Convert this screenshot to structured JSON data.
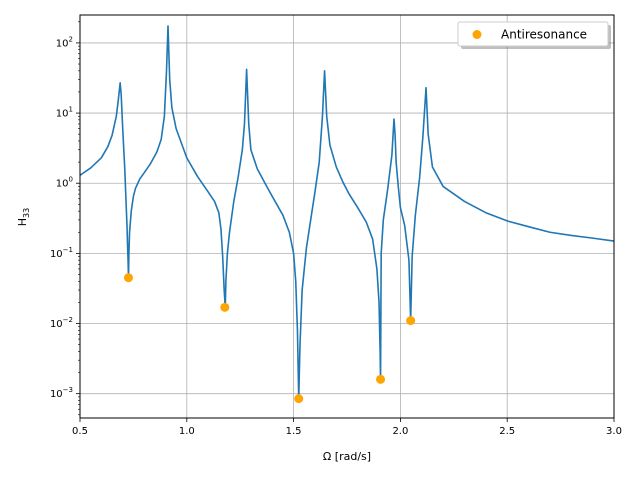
{
  "chart_data": {
    "type": "line",
    "xlabel": "Ω [rad/s]",
    "ylabel_base": "H",
    "ylabel_sub": "33",
    "xlim": [
      0.5,
      3.0
    ],
    "ylim": [
      0.00045,
      250
    ],
    "yscale": "log",
    "grid": true,
    "legend_position": "top-right",
    "xticks": [
      {
        "v": 0.5,
        "label": "0.5"
      },
      {
        "v": 1.0,
        "label": "1.0"
      },
      {
        "v": 1.5,
        "label": "1.5"
      },
      {
        "v": 2.0,
        "label": "2.0"
      },
      {
        "v": 2.5,
        "label": "2.5"
      },
      {
        "v": 3.0,
        "label": "3.0"
      }
    ],
    "yticks": [
      {
        "v": 0.001,
        "base": "10",
        "exp": "−3"
      },
      {
        "v": 0.01,
        "base": "10",
        "exp": "−2"
      },
      {
        "v": 0.1,
        "base": "10",
        "exp": "−1"
      },
      {
        "v": 1,
        "base": "10",
        "exp": "0"
      },
      {
        "v": 10,
        "base": "10",
        "exp": "1"
      },
      {
        "v": 100,
        "base": "10",
        "exp": "2"
      }
    ],
    "series": [
      {
        "line_color": "#1f77b4",
        "points": [
          [
            0.5,
            1.3
          ],
          [
            0.55,
            1.65
          ],
          [
            0.6,
            2.3
          ],
          [
            0.63,
            3.3
          ],
          [
            0.65,
            4.8
          ],
          [
            0.67,
            9.0
          ],
          [
            0.68,
            16
          ],
          [
            0.688,
            27
          ],
          [
            0.693,
            18
          ],
          [
            0.7,
            6
          ],
          [
            0.71,
            1.5
          ],
          [
            0.715,
            0.6
          ],
          [
            0.72,
            0.25
          ],
          [
            0.723,
            0.12
          ],
          [
            0.725,
            0.08
          ],
          [
            0.727,
            0.045
          ],
          [
            0.729,
            0.1
          ],
          [
            0.732,
            0.2
          ],
          [
            0.74,
            0.4
          ],
          [
            0.75,
            0.65
          ],
          [
            0.76,
            0.85
          ],
          [
            0.78,
            1.15
          ],
          [
            0.8,
            1.4
          ],
          [
            0.83,
            1.9
          ],
          [
            0.86,
            2.8
          ],
          [
            0.88,
            4.2
          ],
          [
            0.895,
            9
          ],
          [
            0.905,
            40
          ],
          [
            0.912,
            175
          ],
          [
            0.92,
            30
          ],
          [
            0.93,
            12
          ],
          [
            0.95,
            6
          ],
          [
            1.0,
            2.3
          ],
          [
            1.05,
            1.25
          ],
          [
            1.1,
            0.75
          ],
          [
            1.13,
            0.55
          ],
          [
            1.15,
            0.38
          ],
          [
            1.16,
            0.22
          ],
          [
            1.168,
            0.09
          ],
          [
            1.175,
            0.03
          ],
          [
            1.18,
            0.017
          ],
          [
            1.183,
            0.04
          ],
          [
            1.19,
            0.1
          ],
          [
            1.2,
            0.2
          ],
          [
            1.22,
            0.55
          ],
          [
            1.24,
            1.2
          ],
          [
            1.26,
            3.0
          ],
          [
            1.27,
            7.0
          ],
          [
            1.28,
            42
          ],
          [
            1.29,
            7.0
          ],
          [
            1.3,
            3.0
          ],
          [
            1.33,
            1.6
          ],
          [
            1.37,
            0.95
          ],
          [
            1.4,
            0.65
          ],
          [
            1.45,
            0.35
          ],
          [
            1.48,
            0.2
          ],
          [
            1.5,
            0.1
          ],
          [
            1.51,
            0.04
          ],
          [
            1.518,
            0.008
          ],
          [
            1.524,
            0.00085
          ],
          [
            1.53,
            0.005
          ],
          [
            1.54,
            0.03
          ],
          [
            1.56,
            0.12
          ],
          [
            1.58,
            0.3
          ],
          [
            1.6,
            0.75
          ],
          [
            1.62,
            2.0
          ],
          [
            1.635,
            9
          ],
          [
            1.645,
            40
          ],
          [
            1.655,
            9
          ],
          [
            1.67,
            3.5
          ],
          [
            1.7,
            1.7
          ],
          [
            1.73,
            1.05
          ],
          [
            1.76,
            0.7
          ],
          [
            1.8,
            0.45
          ],
          [
            1.84,
            0.28
          ],
          [
            1.87,
            0.16
          ],
          [
            1.89,
            0.06
          ],
          [
            1.9,
            0.02
          ],
          [
            1.905,
            0.004
          ],
          [
            1.907,
            0.0016
          ],
          [
            1.91,
            0.1
          ],
          [
            1.92,
            0.3
          ],
          [
            1.94,
            0.8
          ],
          [
            1.96,
            2.5
          ],
          [
            1.97,
            8.2
          ],
          [
            1.975,
            5
          ],
          [
            1.98,
            2
          ],
          [
            1.99,
            0.9
          ],
          [
            2.0,
            0.45
          ],
          [
            2.02,
            0.25
          ],
          [
            2.04,
            0.08
          ],
          [
            2.048,
            0.011
          ],
          [
            2.055,
            0.09
          ],
          [
            2.07,
            0.35
          ],
          [
            2.09,
            1.2
          ],
          [
            2.105,
            4.5
          ],
          [
            2.12,
            23
          ],
          [
            2.13,
            5
          ],
          [
            2.15,
            1.7
          ],
          [
            2.2,
            0.9
          ],
          [
            2.3,
            0.55
          ],
          [
            2.4,
            0.38
          ],
          [
            2.5,
            0.29
          ],
          [
            2.6,
            0.24
          ],
          [
            2.7,
            0.2
          ],
          [
            2.8,
            0.18
          ],
          [
            2.9,
            0.165
          ],
          [
            3.0,
            0.15
          ]
        ]
      },
      {
        "name": "Antiresonance",
        "marker_color": "#ffa500",
        "points": [
          [
            0.727,
            0.045
          ],
          [
            1.178,
            0.017
          ],
          [
            1.524,
            0.00085
          ],
          [
            1.907,
            0.0016
          ],
          [
            2.048,
            0.011
          ]
        ]
      }
    ]
  }
}
